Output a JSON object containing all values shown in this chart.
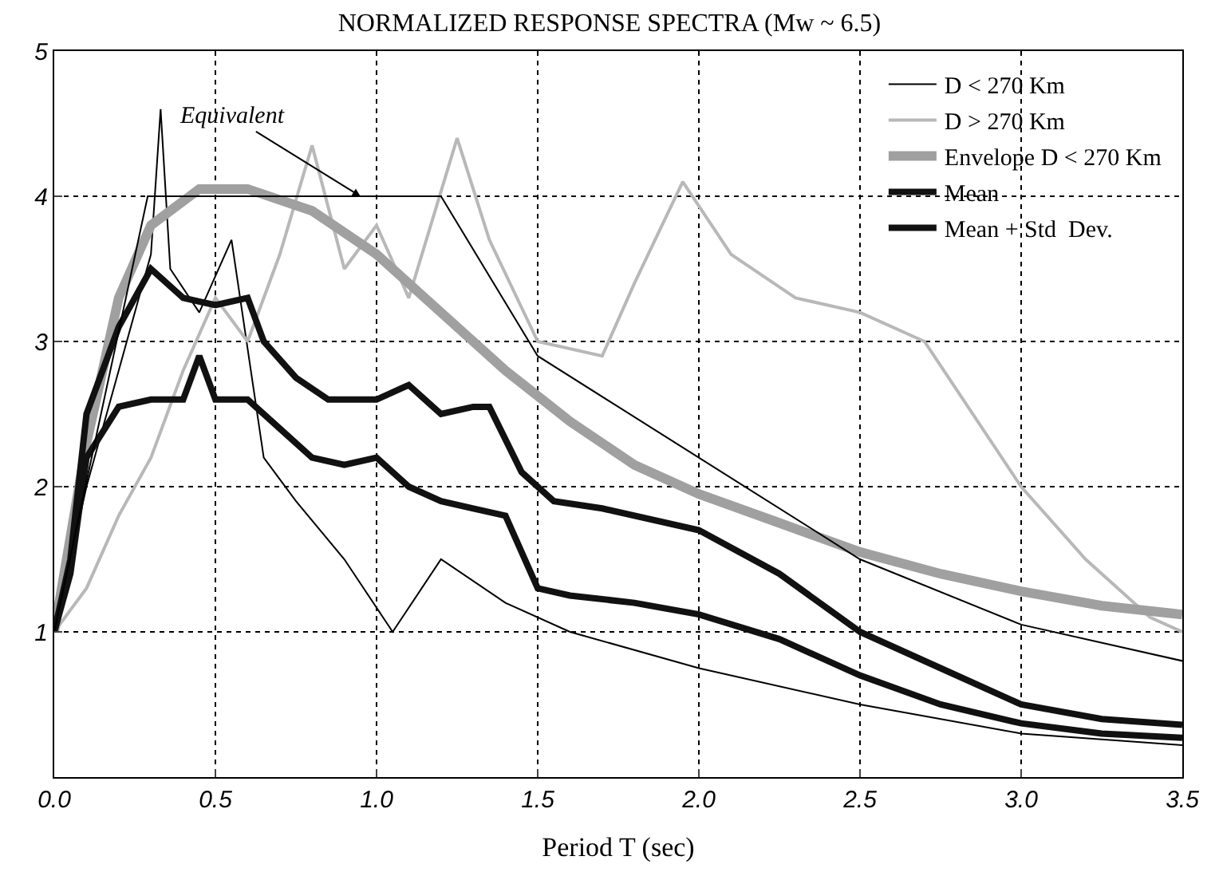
{
  "chart_data": {
    "type": "line",
    "title": "NORMALIZED RESPONSE SPECTRA (Mw ~ 6.5)",
    "xlabel": "Period T (sec)",
    "xlim": [
      0,
      3.5
    ],
    "xticks": [
      {
        "value": 0,
        "label": "0.0"
      },
      {
        "value": 0.5,
        "label": "0.5"
      },
      {
        "value": 1,
        "label": "1.0"
      },
      {
        "value": 1.5,
        "label": "1.5"
      },
      {
        "value": 2,
        "label": "2.0"
      },
      {
        "value": 2.5,
        "label": "2.5"
      },
      {
        "value": 3,
        "label": "3.0"
      },
      {
        "value": 3.5,
        "label": "3.5"
      }
    ],
    "ylim": [
      0,
      5
    ],
    "yticks": [
      1,
      2,
      3,
      4,
      5
    ],
    "grid": true,
    "legend": "top right",
    "series": [
      {
        "name": "D < 270 Km",
        "color": "#000000",
        "x": [
          0,
          0.1,
          0.2,
          0.3,
          0.33,
          0.36,
          0.45,
          0.55,
          0.65,
          0.75,
          0.9,
          1.05,
          1.2,
          1.4,
          1.6,
          2.0,
          2.5,
          3.0,
          3.5
        ],
        "values": [
          1,
          2,
          2.8,
          3.6,
          4.6,
          3.5,
          3.2,
          3.7,
          2.2,
          1.9,
          1.5,
          1.0,
          1.5,
          1.2,
          1.0,
          0.75,
          0.5,
          0.3,
          0.22
        ]
      },
      {
        "name": "D > 270 Km",
        "color": "#b8b8b8",
        "x": [
          0,
          0.1,
          0.2,
          0.3,
          0.4,
          0.5,
          0.6,
          0.7,
          0.8,
          0.9,
          1.0,
          1.1,
          1.25,
          1.35,
          1.5,
          1.7,
          1.8,
          1.95,
          2.1,
          2.3,
          2.5,
          2.7,
          3.0,
          3.2,
          3.4,
          3.5
        ],
        "values": [
          1,
          1.3,
          1.8,
          2.2,
          2.8,
          3.3,
          3.0,
          3.6,
          4.35,
          3.5,
          3.8,
          3.3,
          4.4,
          3.7,
          3.0,
          2.9,
          3.4,
          4.1,
          3.6,
          3.3,
          3.2,
          3.0,
          2.0,
          1.5,
          1.1,
          1.0
        ]
      },
      {
        "name": "Envelope D < 270 Km",
        "color": "#a0a0a0",
        "x": [
          0,
          0.1,
          0.2,
          0.3,
          0.45,
          0.6,
          0.8,
          1.0,
          1.2,
          1.4,
          1.6,
          1.8,
          2.0,
          2.25,
          2.5,
          2.75,
          3.0,
          3.25,
          3.5
        ],
        "values": [
          1,
          2.3,
          3.3,
          3.8,
          4.05,
          4.05,
          3.9,
          3.6,
          3.2,
          2.8,
          2.45,
          2.15,
          1.95,
          1.75,
          1.55,
          1.4,
          1.28,
          1.18,
          1.12
        ]
      },
      {
        "name": "Mean",
        "color": "#111111",
        "x": [
          0,
          0.05,
          0.1,
          0.2,
          0.3,
          0.4,
          0.45,
          0.5,
          0.6,
          0.7,
          0.8,
          0.9,
          1.0,
          1.1,
          1.2,
          1.3,
          1.4,
          1.5,
          1.6,
          1.8,
          2.0,
          2.25,
          2.5,
          2.75,
          3.0,
          3.25,
          3.5
        ],
        "values": [
          1,
          1.4,
          2.2,
          2.55,
          2.6,
          2.6,
          2.9,
          2.6,
          2.6,
          2.4,
          2.2,
          2.15,
          2.2,
          2.0,
          1.9,
          1.85,
          1.8,
          1.3,
          1.25,
          1.2,
          1.12,
          0.95,
          0.7,
          0.5,
          0.37,
          0.3,
          0.27
        ]
      },
      {
        "name": "Mean + Std  Dev.",
        "color": "#111111",
        "x": [
          0,
          0.05,
          0.1,
          0.2,
          0.3,
          0.4,
          0.5,
          0.6,
          0.65,
          0.75,
          0.85,
          1.0,
          1.1,
          1.2,
          1.3,
          1.35,
          1.45,
          1.55,
          1.7,
          2.0,
          2.25,
          2.5,
          2.75,
          3.0,
          3.25,
          3.5
        ],
        "values": [
          1,
          1.5,
          2.5,
          3.1,
          3.5,
          3.3,
          3.25,
          3.3,
          3.0,
          2.75,
          2.6,
          2.6,
          2.7,
          2.5,
          2.55,
          2.55,
          2.1,
          1.9,
          1.85,
          1.7,
          1.4,
          1.0,
          0.75,
          0.5,
          0.4,
          0.36
        ]
      },
      {
        "color": "#000000",
        "x": [
          0,
          0.29,
          1.2,
          1.5,
          2.0,
          2.5,
          3.0,
          3.5
        ],
        "values": [
          1,
          4,
          4,
          2.9,
          2.2,
          1.5,
          1.05,
          0.8
        ]
      }
    ],
    "annotations": [
      {
        "text": "Equivalent",
        "x": 0.95,
        "y": 4.0
      }
    ]
  }
}
